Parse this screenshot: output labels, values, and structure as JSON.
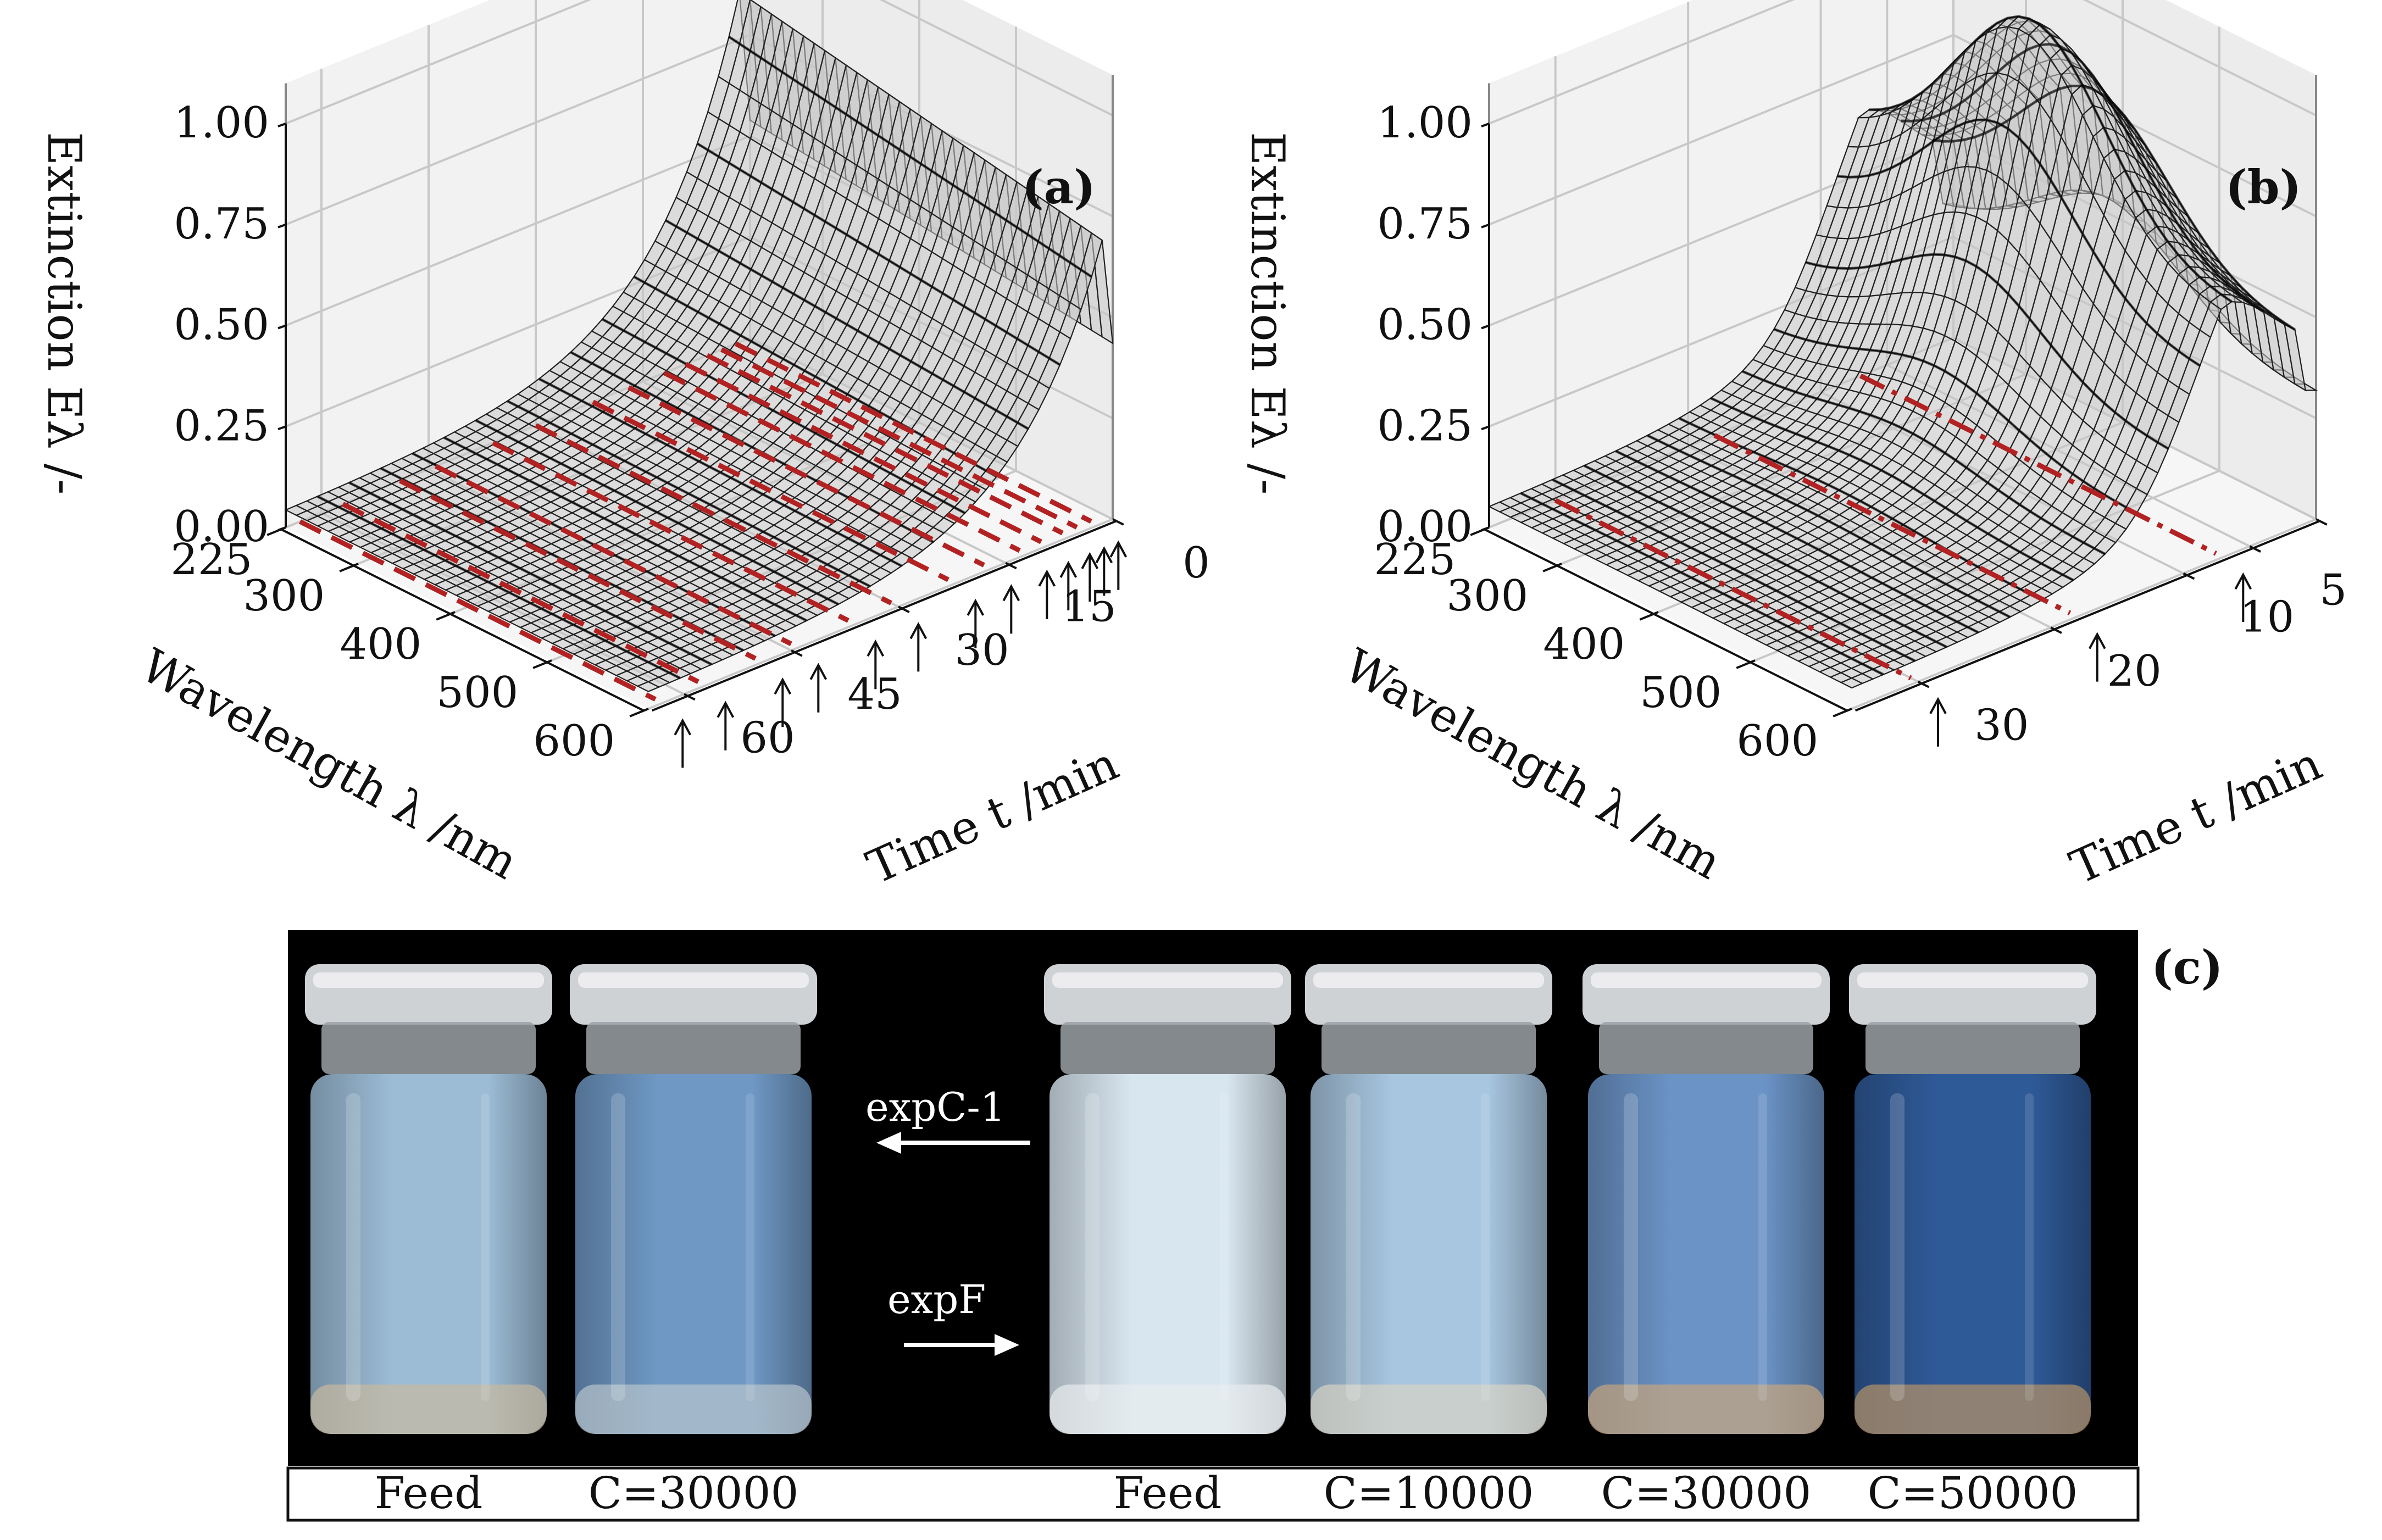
{
  "chart_data": [
    {
      "type": "surface",
      "panel_label": "(a)",
      "zlabel": "Extinction Eλ /-",
      "xlabel": "Wavelength λ /nm",
      "ylabel": "Time t /min",
      "z_ticks": [
        "1.00",
        "0.75",
        "0.50",
        "0.25",
        "0.00"
      ],
      "z_tick_values": [
        1.0,
        0.75,
        0.5,
        0.25,
        0.0
      ],
      "x_ticks": [
        "225",
        "300",
        "400",
        "500",
        "600"
      ],
      "x_tick_values": [
        225,
        300,
        400,
        500,
        600
      ],
      "y_ticks": [
        "0",
        "15",
        "30",
        "45",
        "60"
      ],
      "y_tick_values": [
        0,
        15,
        30,
        45,
        60
      ],
      "xlim": [
        225,
        600
      ],
      "ylim": [
        0,
        65
      ],
      "zlim": [
        0,
        1
      ],
      "grid": true,
      "peak_extinction": 0.98,
      "final_extinction": 0.04,
      "dashed_line_color": "#b22222",
      "marker_times": [
        2,
        4,
        6,
        9,
        12,
        17,
        22,
        30,
        36,
        44,
        49,
        57,
        63
      ]
    },
    {
      "type": "surface",
      "panel_label": "(b)",
      "zlabel": "Extinction Eλ /-",
      "xlabel": "Wavelength λ /nm",
      "ylabel": "Time t /min",
      "z_ticks": [
        "1.00",
        "0.75",
        "0.50",
        "0.25",
        "0.00"
      ],
      "z_tick_values": [
        1.0,
        0.75,
        0.5,
        0.25,
        0.0
      ],
      "x_ticks": [
        "225",
        "300",
        "400",
        "500",
        "600"
      ],
      "x_tick_values": [
        225,
        300,
        400,
        500,
        600
      ],
      "y_ticks": [
        "0",
        "5",
        "10",
        "20",
        "30"
      ],
      "y_tick_values": [
        0,
        5,
        10,
        20,
        30
      ],
      "xlim": [
        225,
        600
      ],
      "ylim": [
        0,
        35
      ],
      "zlim": [
        0,
        1
      ],
      "grid": true,
      "peak_extinction": 1.08,
      "final_extinction": 0.05,
      "dashed_line_color": "#b22222",
      "marker_times": [
        7,
        18,
        30
      ]
    }
  ],
  "photo": {
    "panel_label": "(c)",
    "annotations": {
      "left_arrow": "expC-1",
      "right_arrow": "expF"
    },
    "colors": {
      "background": "#000000",
      "cap": "#cfd2d4"
    },
    "vials": [
      {
        "label": "Feed",
        "liquid": "#9cbcd6",
        "bottom": "#c7b9a0"
      },
      {
        "label": "C=30000",
        "liquid": "#6f98c4",
        "bottom": "#b8c4cc"
      },
      {
        "label": "Feed",
        "liquid": "#d8e6f0",
        "bottom": "#e8ecee"
      },
      {
        "label": "C=10000",
        "liquid": "#a8c6e0",
        "bottom": "#d7d3c4"
      },
      {
        "label": "C=30000",
        "liquid": "#6b93c6",
        "bottom": "#c8a57e"
      },
      {
        "label": "C=50000",
        "liquid": "#2f5a98",
        "bottom": "#b89366"
      }
    ]
  }
}
